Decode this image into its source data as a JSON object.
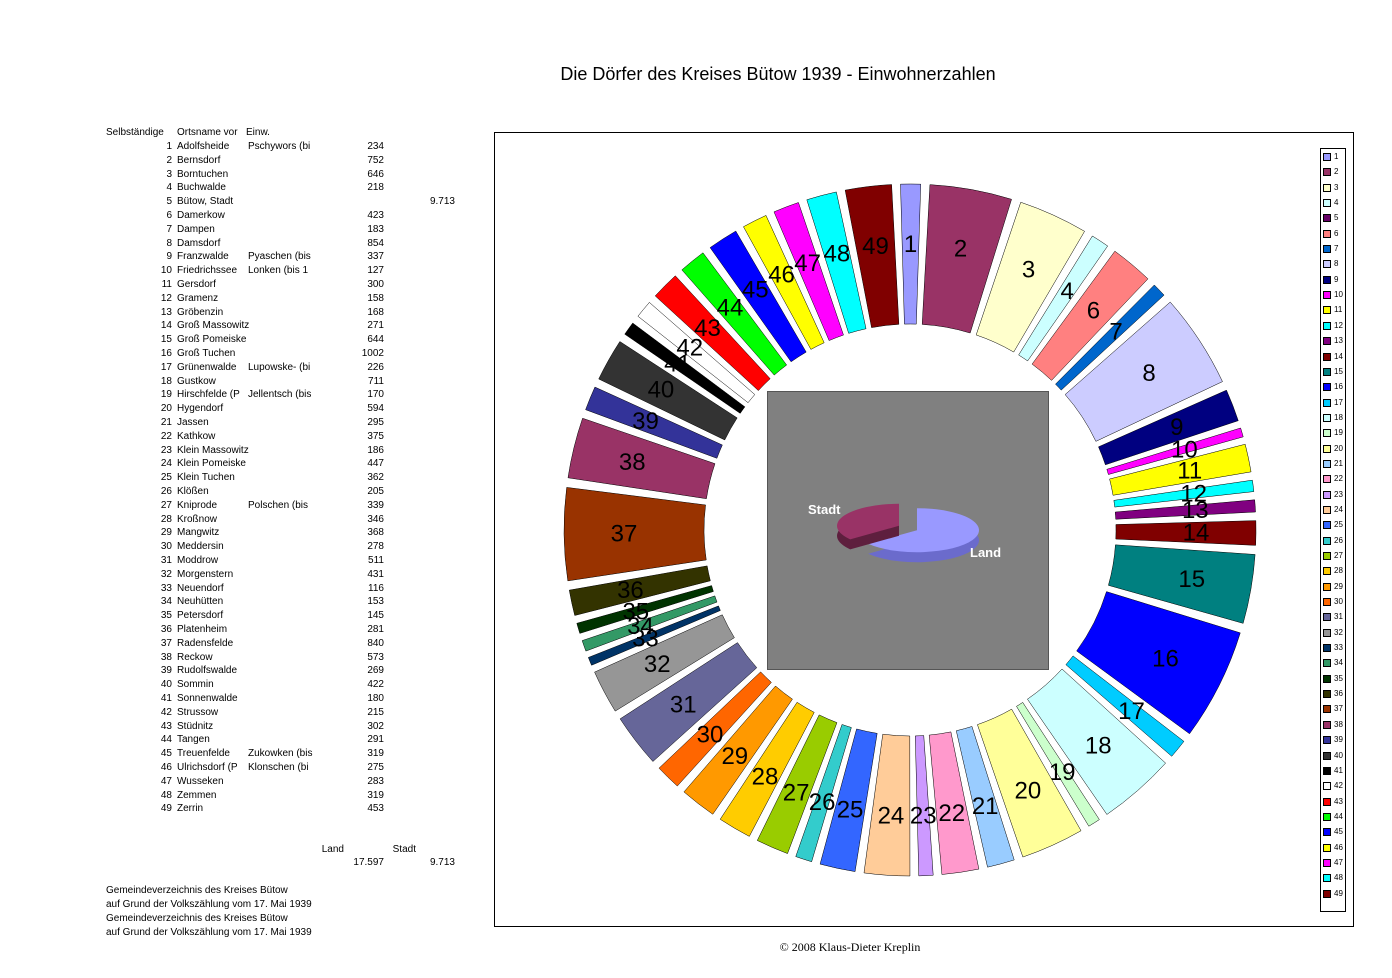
{
  "title": "Die Dörfer des Kreises Bütow 1939 - Einwohnerzahlen",
  "copyright": "© 2008 Klaus-Dieter Kreplin",
  "table": {
    "headers": {
      "no": "Selbständige",
      "name": "Ortsname vor",
      "einw": "Einw."
    },
    "rows": [
      {
        "no": "1",
        "name": "Adolfsheide",
        "alt": "Pschywors (bi",
        "land": "234",
        "stadt": ""
      },
      {
        "no": "2",
        "name": "Bernsdorf",
        "alt": "",
        "land": "752",
        "stadt": ""
      },
      {
        "no": "3",
        "name": "Borntuchen",
        "alt": "",
        "land": "646",
        "stadt": ""
      },
      {
        "no": "4",
        "name": "Buchwalde",
        "alt": "",
        "land": "218",
        "stadt": ""
      },
      {
        "no": "5",
        "name": "Bütow, Stadt",
        "alt": "",
        "land": "",
        "stadt": "9.713"
      },
      {
        "no": "6",
        "name": "Damerkow",
        "alt": "",
        "land": "423",
        "stadt": ""
      },
      {
        "no": "7",
        "name": "Dampen",
        "alt": "",
        "land": "183",
        "stadt": ""
      },
      {
        "no": "8",
        "name": "Damsdorf",
        "alt": "",
        "land": "854",
        "stadt": ""
      },
      {
        "no": "9",
        "name": "Franzwalde",
        "alt": "Pyaschen (bis",
        "land": "337",
        "stadt": ""
      },
      {
        "no": "10",
        "name": "Friedrichssee",
        "alt": "Lonken (bis 1",
        "land": "127",
        "stadt": ""
      },
      {
        "no": "11",
        "name": "Gersdorf",
        "alt": "",
        "land": "300",
        "stadt": ""
      },
      {
        "no": "12",
        "name": "Gramenz",
        "alt": "",
        "land": "158",
        "stadt": ""
      },
      {
        "no": "13",
        "name": "Gröbenzin",
        "alt": "",
        "land": "168",
        "stadt": ""
      },
      {
        "no": "14",
        "name": "Groß Massowitz",
        "alt": "",
        "land": "271",
        "stadt": ""
      },
      {
        "no": "15",
        "name": "Groß Pomeiske",
        "alt": "",
        "land": "644",
        "stadt": ""
      },
      {
        "no": "16",
        "name": "Groß Tuchen",
        "alt": "",
        "land": "1002",
        "stadt": ""
      },
      {
        "no": "17",
        "name": "Grünenwalde",
        "alt": "Lupowske- (bi",
        "land": "226",
        "stadt": ""
      },
      {
        "no": "18",
        "name": "Gustkow",
        "alt": "",
        "land": "711",
        "stadt": ""
      },
      {
        "no": "19",
        "name": "Hirschfelde (P",
        "alt": "Jellentsch (bis",
        "land": "170",
        "stadt": ""
      },
      {
        "no": "20",
        "name": "Hygendorf",
        "alt": "",
        "land": "594",
        "stadt": ""
      },
      {
        "no": "21",
        "name": "Jassen",
        "alt": "",
        "land": "295",
        "stadt": ""
      },
      {
        "no": "22",
        "name": "Kathkow",
        "alt": "",
        "land": "375",
        "stadt": ""
      },
      {
        "no": "23",
        "name": "Klein Massowitz",
        "alt": "",
        "land": "186",
        "stadt": ""
      },
      {
        "no": "24",
        "name": "Klein Pomeiske",
        "alt": "",
        "land": "447",
        "stadt": ""
      },
      {
        "no": "25",
        "name": "Klein Tuchen",
        "alt": "",
        "land": "362",
        "stadt": ""
      },
      {
        "no": "26",
        "name": "Klößen",
        "alt": "",
        "land": "205",
        "stadt": ""
      },
      {
        "no": "27",
        "name": "Kniprode",
        "alt": "Polschen (bis",
        "land": "339",
        "stadt": ""
      },
      {
        "no": "28",
        "name": "Kroßnow",
        "alt": "",
        "land": "346",
        "stadt": ""
      },
      {
        "no": "29",
        "name": "Mangwitz",
        "alt": "",
        "land": "368",
        "stadt": ""
      },
      {
        "no": "30",
        "name": "Meddersin",
        "alt": "",
        "land": "278",
        "stadt": ""
      },
      {
        "no": "31",
        "name": "Moddrow",
        "alt": "",
        "land": "511",
        "stadt": ""
      },
      {
        "no": "32",
        "name": "Morgenstern",
        "alt": "",
        "land": "431",
        "stadt": ""
      },
      {
        "no": "33",
        "name": "Neuendorf",
        "alt": "",
        "land": "116",
        "stadt": ""
      },
      {
        "no": "34",
        "name": "Neuhütten",
        "alt": "",
        "land": "153",
        "stadt": ""
      },
      {
        "no": "35",
        "name": "Petersdorf",
        "alt": "",
        "land": "145",
        "stadt": ""
      },
      {
        "no": "36",
        "name": "Platenheim",
        "alt": "",
        "land": "281",
        "stadt": ""
      },
      {
        "no": "37",
        "name": "Radensfelde",
        "alt": "",
        "land": "840",
        "stadt": ""
      },
      {
        "no": "38",
        "name": "Reckow",
        "alt": "",
        "land": "573",
        "stadt": ""
      },
      {
        "no": "39",
        "name": "Rudolfswalde",
        "alt": "",
        "land": "269",
        "stadt": ""
      },
      {
        "no": "40",
        "name": "Sommin",
        "alt": "",
        "land": "422",
        "stadt": ""
      },
      {
        "no": "41",
        "name": "Sonnenwalde",
        "alt": "",
        "land": "180",
        "stadt": ""
      },
      {
        "no": "42",
        "name": "Strussow",
        "alt": "",
        "land": "215",
        "stadt": ""
      },
      {
        "no": "43",
        "name": "Stüdnitz",
        "alt": "",
        "land": "302",
        "stadt": ""
      },
      {
        "no": "44",
        "name": "Tangen",
        "alt": "",
        "land": "291",
        "stadt": ""
      },
      {
        "no": "45",
        "name": "Treuenfelde",
        "alt": "Zukowken (bis",
        "land": "319",
        "stadt": ""
      },
      {
        "no": "46",
        "name": "Ulrichsdorf (P",
        "alt": "Klonschen (bi",
        "land": "275",
        "stadt": ""
      },
      {
        "no": "47",
        "name": "Wusseken",
        "alt": "",
        "land": "283",
        "stadt": ""
      },
      {
        "no": "48",
        "name": "Zemmen",
        "alt": "",
        "land": "319",
        "stadt": ""
      },
      {
        "no": "49",
        "name": "Zerrin",
        "alt": "",
        "land": "453",
        "stadt": ""
      }
    ],
    "totals": {
      "land_label": "Land",
      "stadt_label": "Stadt",
      "land_value": "17.597",
      "stadt_value": "9.713"
    },
    "source_lines": [
      "Gemeindeverzeichnis des Kreises Bütow",
      "auf Grund der Volkszählung vom 17. Mai 1939",
      "Gemeindeverzeichnis des Kreises Bütow",
      "auf Grund der Volkszählung vom 17. Mai 1939"
    ]
  },
  "chart_data": [
    {
      "type": "pie",
      "subtype": "exploded-doughnut",
      "categories": [
        "1",
        "2",
        "3",
        "4",
        "5",
        "6",
        "7",
        "8",
        "9",
        "10",
        "11",
        "12",
        "13",
        "14",
        "15",
        "16",
        "17",
        "18",
        "19",
        "20",
        "21",
        "22",
        "23",
        "24",
        "25",
        "26",
        "27",
        "28",
        "29",
        "30",
        "31",
        "32",
        "33",
        "34",
        "35",
        "36",
        "37",
        "38",
        "39",
        "40",
        "41",
        "42",
        "43",
        "44",
        "45",
        "46",
        "47",
        "48",
        "49"
      ],
      "values": [
        234,
        752,
        646,
        218,
        0,
        423,
        183,
        854,
        337,
        127,
        300,
        158,
        168,
        271,
        644,
        1002,
        226,
        711,
        170,
        594,
        295,
        375,
        186,
        447,
        362,
        205,
        339,
        346,
        368,
        278,
        511,
        431,
        116,
        153,
        145,
        281,
        840,
        573,
        269,
        422,
        180,
        215,
        302,
        291,
        319,
        275,
        283,
        319,
        453
      ],
      "colors": [
        "#9999ff",
        "#993366",
        "#ffffcc",
        "#ccffff",
        "#660066",
        "#ff8080",
        "#0066cc",
        "#ccccff",
        "#000080",
        "#ff00ff",
        "#ffff00",
        "#00ffff",
        "#800080",
        "#800000",
        "#008080",
        "#0000ff",
        "#00ccff",
        "#ccffff",
        "#ccffcc",
        "#ffff99",
        "#99ccff",
        "#ff99cc",
        "#cc99ff",
        "#ffcc99",
        "#3366ff",
        "#33cccc",
        "#99cc00",
        "#ffcc00",
        "#ff9900",
        "#ff6600",
        "#666699",
        "#969696",
        "#003366",
        "#339966",
        "#003300",
        "#333300",
        "#993300",
        "#993366",
        "#333399",
        "#333333",
        "#000000",
        "#ffffff",
        "#ff0000",
        "#00ff00",
        "#0000ff",
        "#ffff00",
        "#ff00ff",
        "#00ffff",
        "#800000"
      ],
      "legend": {
        "position": "right"
      },
      "data_labels": "category"
    },
    {
      "type": "pie",
      "subtype": "3d-exploded",
      "categories": [
        "Land",
        "Stadt"
      ],
      "values": [
        17597,
        9713
      ],
      "colors": [
        "#9999ff",
        "#993366"
      ]
    }
  ]
}
